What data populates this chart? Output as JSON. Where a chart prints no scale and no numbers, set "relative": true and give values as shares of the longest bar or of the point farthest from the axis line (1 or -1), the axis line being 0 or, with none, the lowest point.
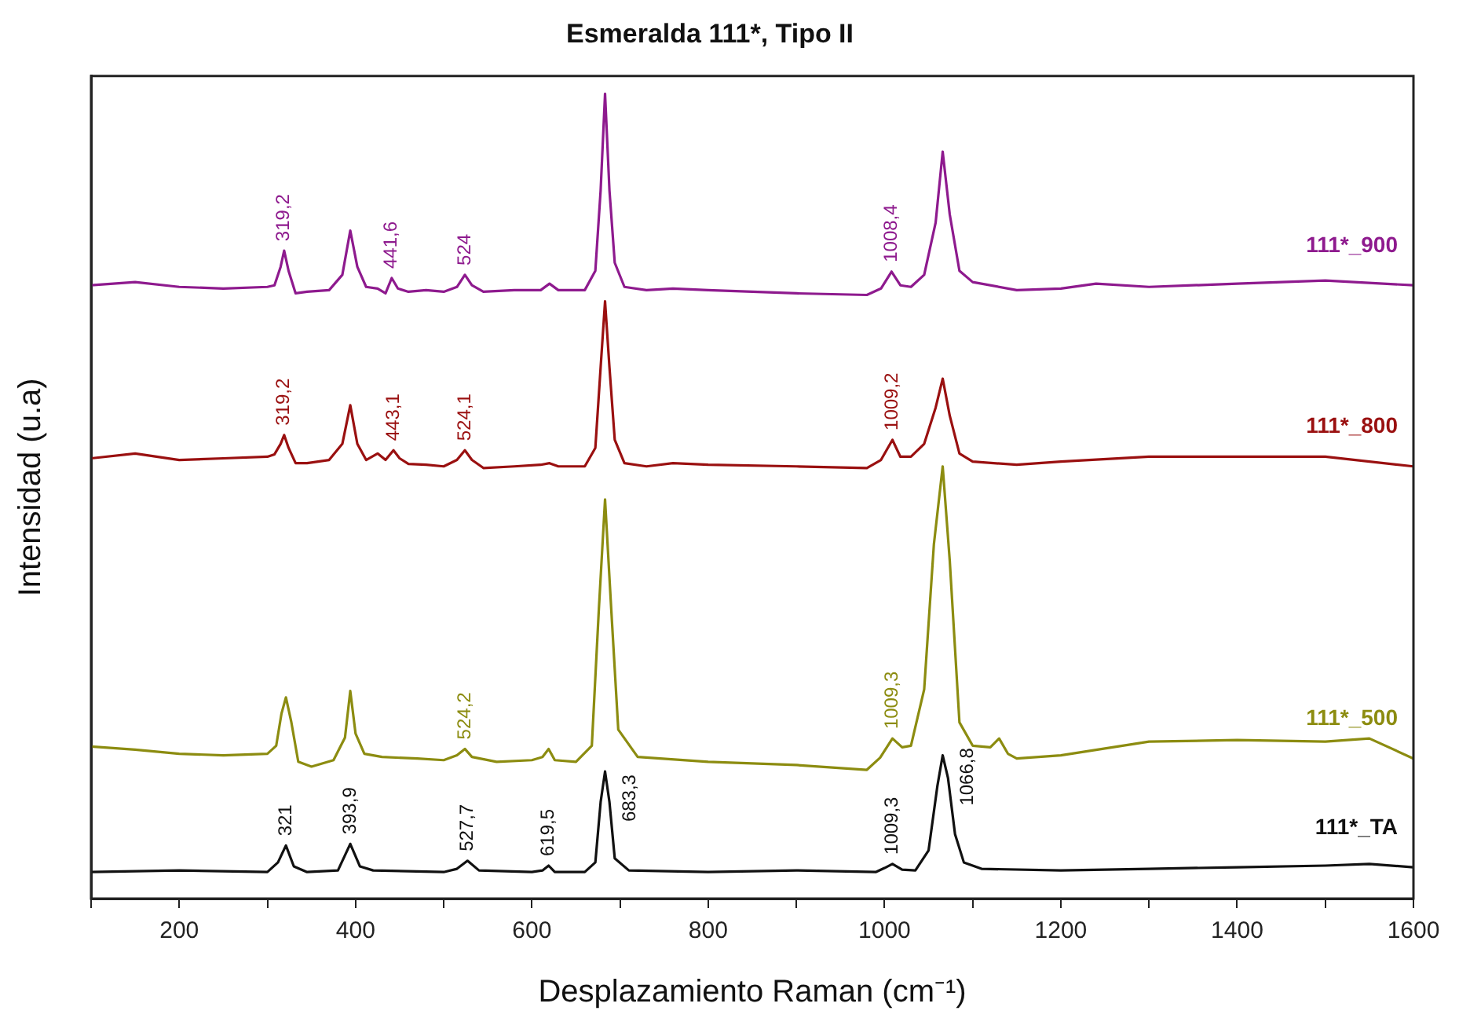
{
  "chart_data": {
    "type": "line",
    "title": "Esmeralda 111*, Tipo II",
    "xlabel": "Desplazamiento Raman (cm⁻¹)",
    "ylabel": "Intensidad (u.a)",
    "relative": true,
    "legend": false,
    "grid": false,
    "marker": "none",
    "line_style": "solid",
    "xlim": [
      100,
      1600
    ],
    "xticks": [
      {
        "value": 100,
        "label": null
      },
      200,
      {
        "value": 300,
        "label": null
      },
      400,
      {
        "value": 500,
        "label": null
      },
      600,
      {
        "value": 700,
        "label": null
      },
      800,
      {
        "value": 900,
        "label": null
      },
      1000,
      {
        "value": 1100,
        "label": null
      },
      1200,
      {
        "value": 1300,
        "label": null
      },
      1400,
      {
        "value": 1500,
        "label": null
      },
      1600
    ],
    "series": [
      {
        "name": "111*_900",
        "color": "#8e1a8e",
        "x": [
          100,
          150,
          200,
          250,
          300,
          308,
          315,
          319,
          324,
          332,
          345,
          370,
          385,
          394,
          402,
          412,
          425,
          434,
          441,
          448,
          460,
          480,
          500,
          515,
          524,
          532,
          545,
          580,
          610,
          620,
          630,
          660,
          672,
          678,
          683,
          688,
          694,
          705,
          730,
          760,
          800,
          900,
          980,
          996,
          1008,
          1018,
          1030,
          1045,
          1058,
          1066,
          1074,
          1085,
          1100,
          1150,
          1200,
          1240,
          1300,
          1400,
          1500,
          1600
        ],
        "values": [
          0.762,
          0.766,
          0.76,
          0.758,
          0.76,
          0.762,
          0.785,
          0.805,
          0.78,
          0.752,
          0.754,
          0.756,
          0.775,
          0.83,
          0.785,
          0.76,
          0.758,
          0.752,
          0.771,
          0.758,
          0.754,
          0.756,
          0.754,
          0.76,
          0.775,
          0.762,
          0.754,
          0.756,
          0.756,
          0.764,
          0.756,
          0.756,
          0.78,
          0.88,
          1.0,
          0.88,
          0.79,
          0.76,
          0.756,
          0.758,
          0.756,
          0.752,
          0.75,
          0.758,
          0.779,
          0.762,
          0.76,
          0.775,
          0.84,
          0.928,
          0.85,
          0.78,
          0.766,
          0.756,
          0.758,
          0.764,
          0.76,
          0.764,
          0.768,
          0.762
        ]
      },
      {
        "name": "111*_800",
        "color": "#9a1010",
        "x": [
          100,
          150,
          200,
          250,
          300,
          308,
          315,
          319,
          324,
          332,
          345,
          370,
          385,
          394,
          402,
          412,
          425,
          434,
          443,
          450,
          460,
          480,
          500,
          515,
          524,
          532,
          545,
          580,
          610,
          620,
          630,
          660,
          672,
          678,
          683,
          688,
          694,
          705,
          730,
          760,
          800,
          900,
          980,
          996,
          1009,
          1018,
          1030,
          1045,
          1058,
          1066,
          1074,
          1085,
          1100,
          1150,
          1200,
          1300,
          1400,
          1500,
          1600
        ],
        "values": [
          0.547,
          0.553,
          0.545,
          0.547,
          0.549,
          0.552,
          0.565,
          0.576,
          0.56,
          0.541,
          0.541,
          0.545,
          0.565,
          0.613,
          0.565,
          0.545,
          0.553,
          0.545,
          0.557,
          0.547,
          0.54,
          0.539,
          0.537,
          0.545,
          0.557,
          0.545,
          0.535,
          0.537,
          0.539,
          0.541,
          0.537,
          0.537,
          0.56,
          0.66,
          0.742,
          0.66,
          0.57,
          0.541,
          0.537,
          0.541,
          0.539,
          0.537,
          0.535,
          0.545,
          0.57,
          0.549,
          0.549,
          0.565,
          0.61,
          0.646,
          0.6,
          0.553,
          0.543,
          0.539,
          0.543,
          0.549,
          0.549,
          0.549,
          0.537
        ]
      },
      {
        "name": "111*_500",
        "color": "#8c8c10",
        "x": [
          100,
          150,
          200,
          250,
          300,
          310,
          316,
          321,
          327,
          335,
          350,
          375,
          388,
          394,
          400,
          410,
          430,
          470,
          500,
          515,
          524,
          532,
          560,
          600,
          612,
          619,
          626,
          650,
          668,
          676,
          683,
          690,
          698,
          720,
          800,
          900,
          980,
          995,
          1009,
          1020,
          1030,
          1045,
          1056,
          1066,
          1074,
          1085,
          1100,
          1120,
          1130,
          1140,
          1150,
          1200,
          1300,
          1400,
          1500,
          1550,
          1600
        ],
        "values": [
          0.189,
          0.185,
          0.18,
          0.178,
          0.18,
          0.19,
          0.23,
          0.25,
          0.22,
          0.17,
          0.164,
          0.172,
          0.2,
          0.258,
          0.205,
          0.18,
          0.176,
          0.174,
          0.172,
          0.178,
          0.186,
          0.176,
          0.17,
          0.172,
          0.176,
          0.186,
          0.172,
          0.17,
          0.19,
          0.36,
          0.496,
          0.36,
          0.21,
          0.176,
          0.17,
          0.166,
          0.16,
          0.175,
          0.199,
          0.188,
          0.19,
          0.26,
          0.44,
          0.537,
          0.42,
          0.219,
          0.19,
          0.188,
          0.199,
          0.18,
          0.174,
          0.178,
          0.195,
          0.197,
          0.195,
          0.199,
          0.174
        ]
      },
      {
        "name": "111*_TA",
        "color": "#111111",
        "x": [
          100,
          200,
          300,
          312,
          321,
          330,
          345,
          380,
          394,
          405,
          420,
          500,
          515,
          527,
          540,
          600,
          612,
          619,
          626,
          660,
          672,
          678,
          683,
          688,
          694,
          710,
          800,
          900,
          990,
          1000,
          1009,
          1020,
          1035,
          1050,
          1060,
          1066,
          1072,
          1080,
          1090,
          1110,
          1200,
          1300,
          1400,
          1500,
          1550,
          1600
        ],
        "values": [
          0.033,
          0.035,
          0.033,
          0.045,
          0.066,
          0.04,
          0.033,
          0.035,
          0.068,
          0.04,
          0.035,
          0.033,
          0.037,
          0.047,
          0.035,
          0.033,
          0.035,
          0.041,
          0.033,
          0.033,
          0.045,
          0.12,
          0.158,
          0.12,
          0.05,
          0.035,
          0.033,
          0.035,
          0.033,
          0.038,
          0.043,
          0.036,
          0.035,
          0.06,
          0.14,
          0.178,
          0.15,
          0.08,
          0.045,
          0.037,
          0.035,
          0.037,
          0.039,
          0.041,
          0.043,
          0.039
        ]
      }
    ],
    "annotations": [
      {
        "text": "319,2",
        "x": 319,
        "y": 0.805
      },
      {
        "text": "441,6",
        "x": 441,
        "y": 0.771
      },
      {
        "text": "524",
        "x": 524,
        "y": 0.775
      },
      {
        "text": "1008,4",
        "x": 1008,
        "y": 0.779
      },
      {
        "text": "319,2",
        "x": 319,
        "y": 0.576
      },
      {
        "text": "443,1",
        "x": 443,
        "y": 0.557
      },
      {
        "text": "524,1",
        "x": 524,
        "y": 0.557
      },
      {
        "text": "1009,2",
        "x": 1009,
        "y": 0.57
      },
      {
        "text": "524,2",
        "x": 524,
        "y": 0.186
      },
      {
        "text": "1009,3",
        "x": 1009,
        "y": 0.199
      },
      {
        "text": "321",
        "x": 321,
        "y": 0.066
      },
      {
        "text": "393,9",
        "x": 394,
        "y": 0.068
      },
      {
        "text": "527,7",
        "x": 527,
        "y": 0.047
      },
      {
        "text": "619,5",
        "x": 619,
        "y": 0.041
      },
      {
        "text": "683,3",
        "x": 683,
        "y": 0.158
      },
      {
        "text": "1009,3",
        "x": 1009,
        "y": 0.043
      },
      {
        "text": "1066,8",
        "x": 1066,
        "y": 0.178
      }
    ]
  }
}
